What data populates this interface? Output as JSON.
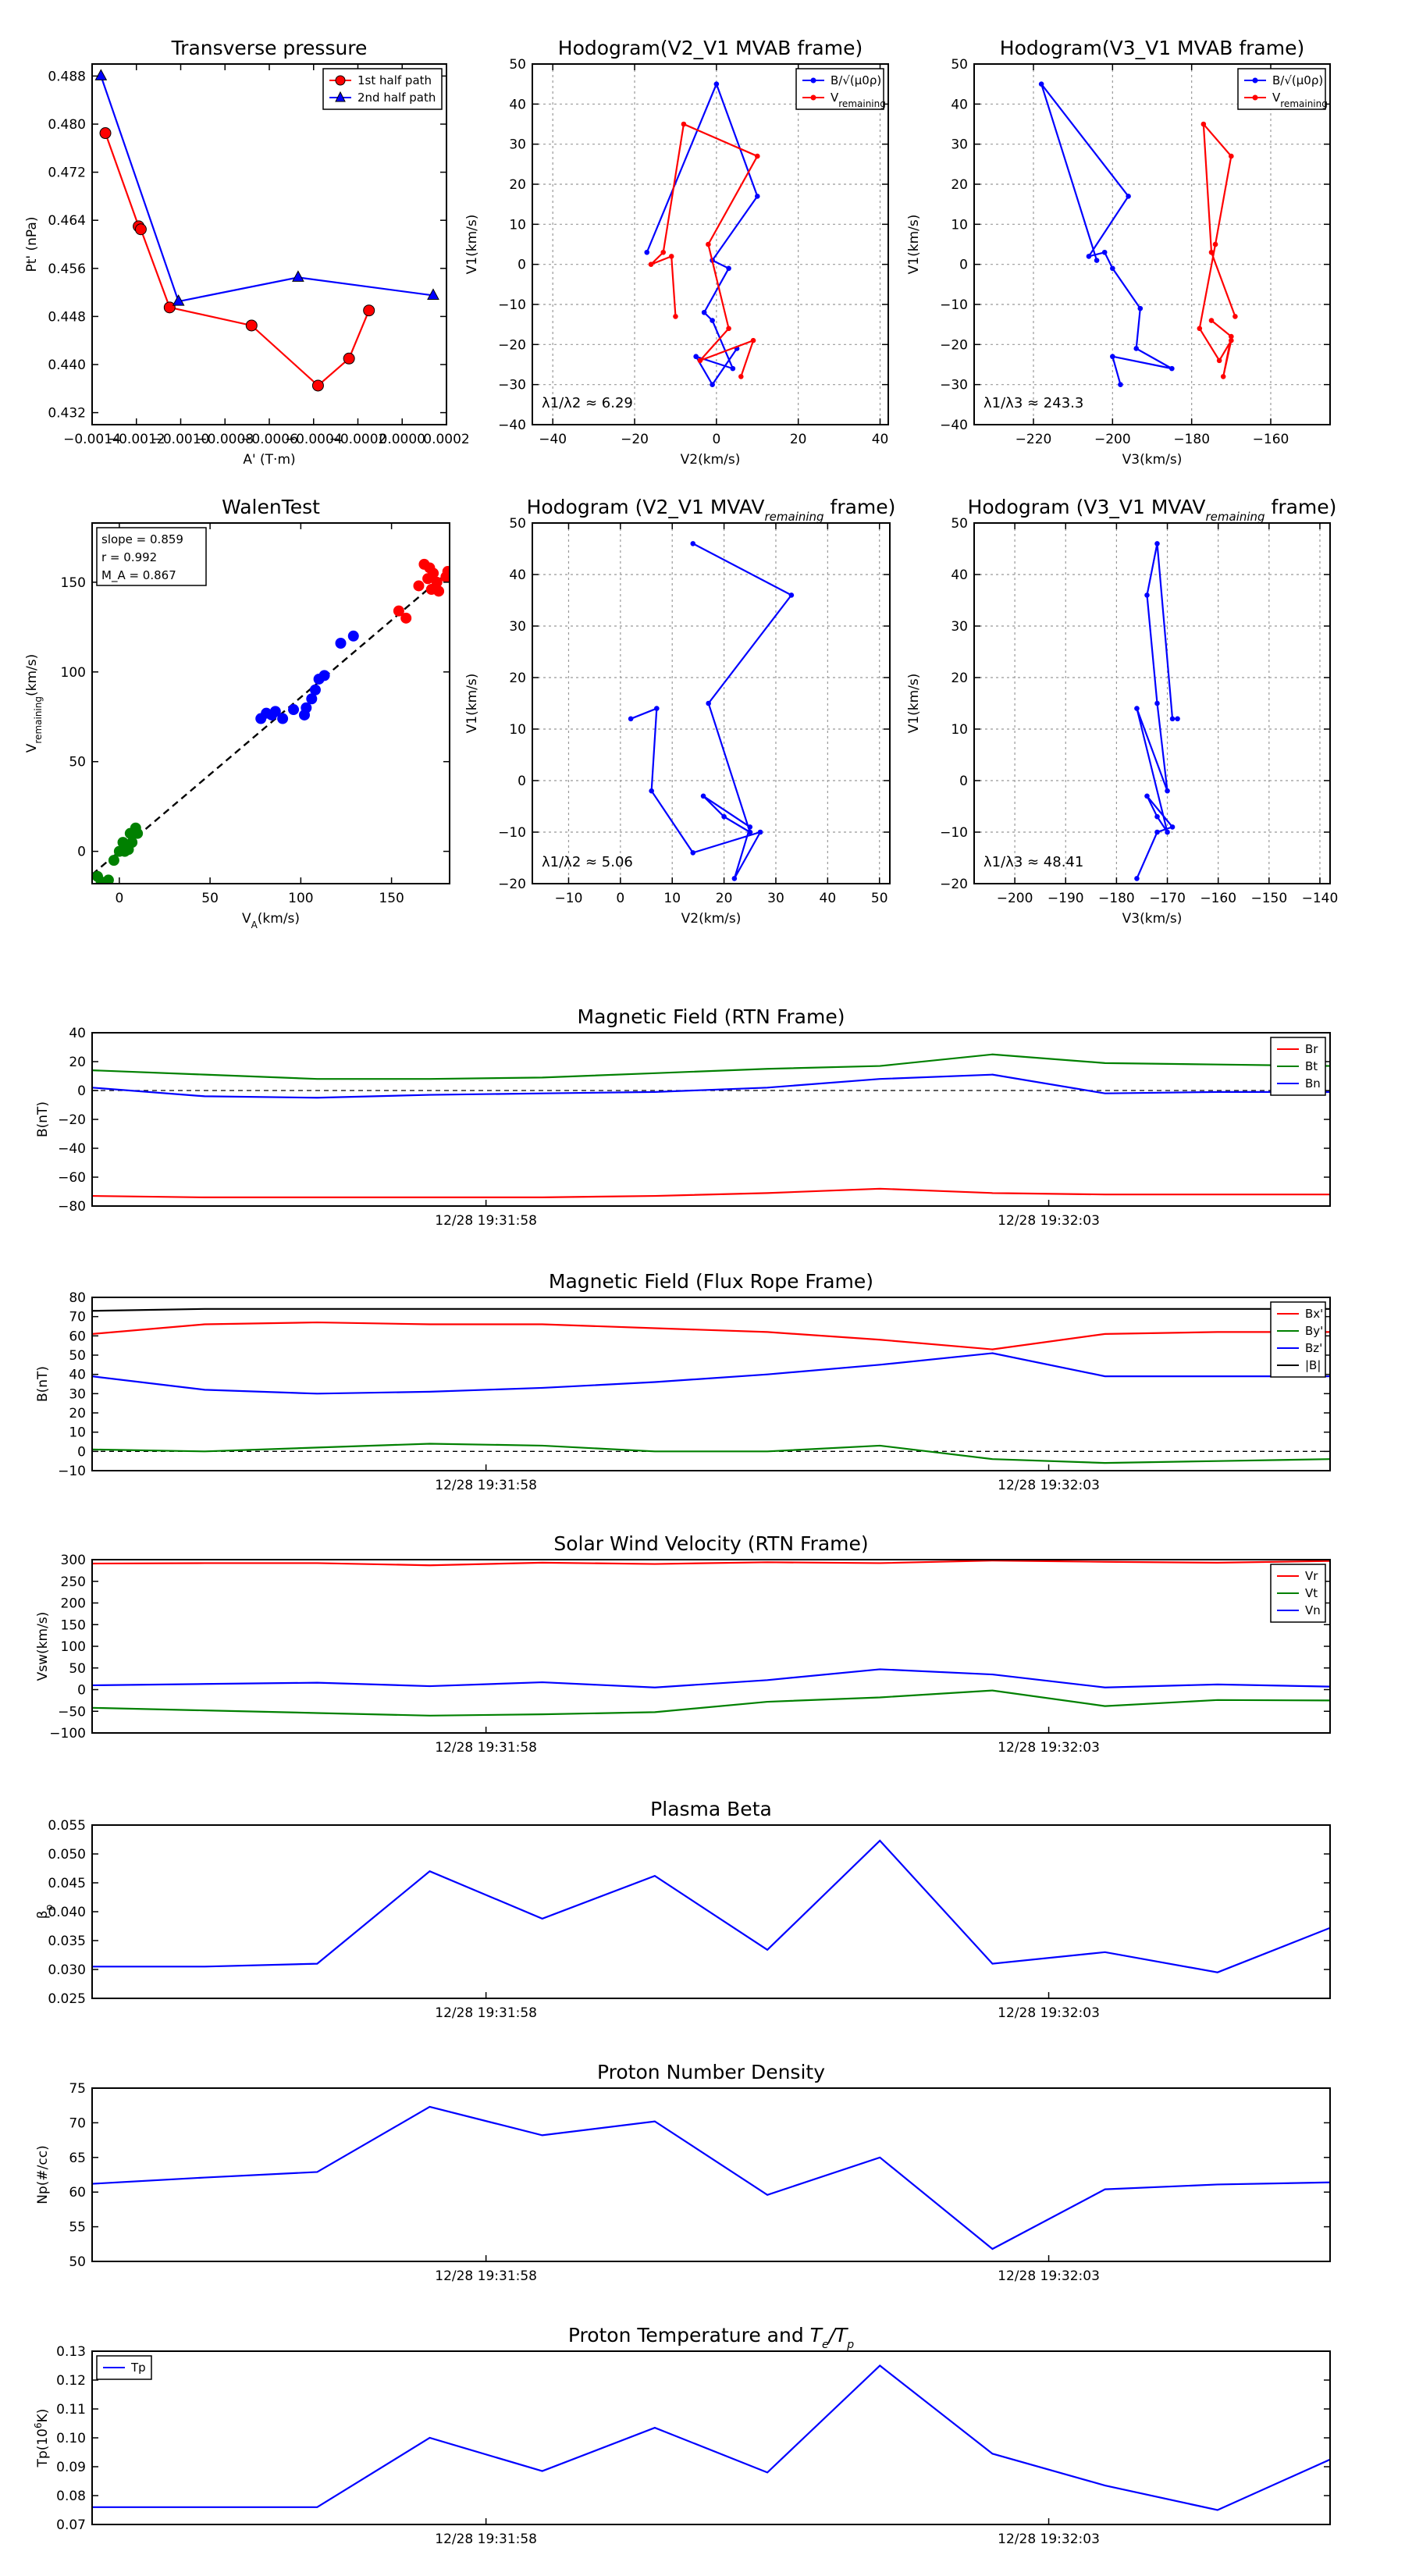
{
  "chart_data": [
    {
      "id": "pt",
      "type": "scatter",
      "title": "Transverse pressure",
      "xlabel": "A' (T·m)",
      "ylabel": "Pt' (nPa)",
      "xlim": [
        -0.0014,
        0.0002
      ],
      "ylim": [
        0.43,
        0.49
      ],
      "xticks": [
        -0.0014,
        -0.0012,
        -0.001,
        -0.0008,
        -0.0006,
        -0.0004,
        -0.0002,
        0.0,
        0.0002
      ],
      "xtick_labels": [
        "-0.0014",
        "-0.0012",
        "-0.0010",
        "-0.0008",
        "-0.0006",
        "-0.0004",
        "-0.0002",
        "0.0000",
        "0.0002"
      ],
      "yticks": [
        0.432,
        0.44,
        0.448,
        0.456,
        0.464,
        0.472,
        0.48,
        0.488
      ],
      "ytick_labels": [
        "0.432",
        "0.440",
        "0.448",
        "0.456",
        "0.464",
        "0.472",
        "0.480",
        "0.488"
      ],
      "grid": false,
      "legend": "top-right",
      "series": [
        {
          "name": "1st half path",
          "color": "#ff0000",
          "marker": "circle",
          "x": [
            -0.00134,
            -0.00119,
            -0.00118,
            -0.00105,
            -0.00068,
            -0.00038,
            -0.00024,
            -0.00015
          ],
          "y": [
            0.4785,
            0.463,
            0.4625,
            0.4495,
            0.4465,
            0.4365,
            0.441,
            0.449
          ]
        },
        {
          "name": "2nd half path",
          "color": "#0000ff",
          "marker": "triangle",
          "x": [
            -0.00136,
            -0.00101,
            -0.00047,
            0.00014
          ],
          "y": [
            0.488,
            0.4505,
            0.4545,
            0.4515
          ]
        }
      ]
    },
    {
      "id": "hodo1",
      "type": "line",
      "title": "Hodogram(V2_V1 MVAB frame)",
      "xlabel": "V2(km/s)",
      "ylabel": "V1(km/s)",
      "xlim": [
        -45,
        42
      ],
      "ylim": [
        -40,
        50
      ],
      "xticks": [
        -40,
        -20,
        0,
        20,
        40
      ],
      "yticks": [
        -40,
        -30,
        -20,
        -10,
        0,
        10,
        20,
        30,
        40,
        50
      ],
      "grid": true,
      "legend": "top-right",
      "annotation": "λ1/λ2 ≈ 6.29",
      "series": [
        {
          "name": "B/√(μ0ρ)",
          "color": "#0000ff",
          "x": [
            -17,
            0,
            10,
            -1,
            3,
            -3,
            -1,
            4,
            -5,
            -1,
            5
          ],
          "y": [
            3,
            45,
            17,
            1,
            -1,
            -12,
            -14,
            -26,
            -23,
            -30,
            -21
          ]
        },
        {
          "name": "V remaining",
          "color": "#ff0000",
          "x": [
            -10,
            -11,
            -16,
            -13,
            -8,
            10,
            -2,
            3,
            -4,
            9,
            6
          ],
          "y": [
            -13,
            2,
            0,
            3,
            35,
            27,
            5,
            -16,
            -24,
            -19,
            -28
          ]
        }
      ]
    },
    {
      "id": "hodo2",
      "type": "line",
      "title": "Hodogram(V3_V1 MVAB frame)",
      "xlabel": "V3(km/s)",
      "ylabel": "V1(km/s)",
      "xlim": [
        -235,
        -145
      ],
      "ylim": [
        -40,
        50
      ],
      "xticks": [
        -220,
        -200,
        -180,
        -160
      ],
      "yticks": [
        -40,
        -30,
        -20,
        -10,
        0,
        10,
        20,
        30,
        40,
        50
      ],
      "grid": true,
      "legend": "top-right",
      "annotation": "λ1/λ3 ≈ 243.3",
      "series": [
        {
          "name": "B/√(μ0ρ)",
          "color": "#0000ff",
          "x": [
            -204,
            -218,
            -196,
            -206,
            -202,
            -200,
            -193,
            -194,
            -185,
            -200,
            -198
          ],
          "y": [
            1,
            45,
            17,
            2,
            3,
            -1,
            -11,
            -21,
            -26,
            -23,
            -30
          ]
        },
        {
          "name": "V remaining",
          "color": "#ff0000",
          "x": [
            -169,
            -175,
            -177,
            -170,
            -174,
            -178,
            -173,
            -170,
            -172,
            -170,
            -175
          ],
          "y": [
            -13,
            3,
            35,
            27,
            5,
            -16,
            -24,
            -19,
            -28,
            -18,
            -14
          ]
        }
      ]
    },
    {
      "id": "walen",
      "type": "scatter",
      "title": "WalenTest",
      "xlabel": "V_A(km/s)",
      "ylabel": "V_remaining(km/s)",
      "xlim": [
        -15,
        182
      ],
      "ylim": [
        -18,
        183
      ],
      "xticks": [
        0,
        50,
        100,
        150
      ],
      "yticks": [
        0,
        50,
        100,
        150
      ],
      "grid": false,
      "legend": "",
      "stats": {
        "slope": "slope = 0.859",
        "r": "r = 0.992",
        "ma": "M_A = 0.867"
      },
      "fit_line": {
        "x": [
          -15,
          182
        ],
        "y": [
          -12.9,
          156.3
        ]
      },
      "series": [
        {
          "name": "green",
          "color": "#008000",
          "x": [
            -12,
            -10,
            -6,
            -3,
            0,
            2,
            3,
            5,
            6,
            7,
            9,
            10
          ],
          "y": [
            -14,
            -17,
            -16,
            -5,
            0,
            5,
            0,
            1,
            10,
            5,
            13,
            10
          ]
        },
        {
          "name": "blue",
          "color": "#0000ff",
          "x": [
            78,
            81,
            84,
            86,
            90,
            96,
            102,
            103,
            106,
            108,
            110,
            113,
            122,
            129
          ],
          "y": [
            74,
            77,
            76,
            78,
            74,
            79,
            76,
            80,
            85,
            90,
            96,
            98,
            116,
            120
          ]
        },
        {
          "name": "red",
          "color": "#ff0000",
          "x": [
            154,
            158,
            165,
            168,
            170,
            171,
            172,
            173,
            175,
            176,
            180,
            181
          ],
          "y": [
            134,
            130,
            148,
            160,
            152,
            158,
            146,
            155,
            150,
            145,
            153,
            156
          ]
        }
      ]
    },
    {
      "id": "hodo3",
      "type": "line",
      "title": "Hodogram (V2_V1 MVAV_remaining frame)",
      "xlabel": "V2(km/s)",
      "ylabel": "V1(km/s)",
      "xlim": [
        -17,
        52
      ],
      "ylim": [
        -20,
        50
      ],
      "xticks": [
        -10,
        0,
        10,
        20,
        30,
        40,
        50
      ],
      "yticks": [
        -20,
        -10,
        0,
        10,
        20,
        30,
        40,
        50
      ],
      "grid": true,
      "legend": "",
      "annotation": "λ1/λ2 ≈ 5.06",
      "series": [
        {
          "name": "V remaining",
          "color": "#0000ff",
          "x": [
            2,
            7,
            6,
            14,
            27,
            22,
            25,
            16,
            20,
            25,
            17,
            33,
            14
          ],
          "y": [
            12,
            14,
            -2,
            -14,
            -10,
            -19,
            -9,
            -3,
            -7,
            -10,
            15,
            36,
            46
          ]
        }
      ]
    },
    {
      "id": "hodo4",
      "type": "line",
      "title": "Hodogram (V3_V1 MVAV_remaining frame)",
      "xlabel": "V3(km/s)",
      "ylabel": "V1(km/s)",
      "xlim": [
        -208,
        -138
      ],
      "ylim": [
        -20,
        50
      ],
      "xticks": [
        -200,
        -190,
        -180,
        -170,
        -160,
        -150,
        -140
      ],
      "yticks": [
        -20,
        -10,
        0,
        10,
        20,
        30,
        40,
        50
      ],
      "grid": true,
      "legend": "",
      "annotation": "λ1/λ3 ≈ 48.41",
      "series": [
        {
          "name": "V remaining",
          "color": "#0000ff",
          "x": [
            -176,
            -172,
            -169,
            -174,
            -172,
            -170,
            -176,
            -170,
            -172,
            -174,
            -172,
            -169,
            -168
          ],
          "y": [
            -19,
            -10,
            -9,
            -3,
            -7,
            -10,
            14,
            -2,
            15,
            36,
            46,
            12,
            12
          ]
        }
      ]
    },
    {
      "id": "ts_b",
      "type": "line",
      "title": "Magnetic Field (RTN Frame)",
      "xlabel": "",
      "ylabel": "B(nT)",
      "xlim": [
        0,
        11
      ],
      "ylim": [
        -80,
        40
      ],
      "yticks": [
        -80,
        -60,
        -40,
        -20,
        0,
        20,
        40
      ],
      "xtick_labels": [
        {
          "t": 3.5,
          "label": "12/28 19:31:58"
        },
        {
          "t": 8.5,
          "label": "12/28 19:32:03"
        }
      ],
      "zero_line": true,
      "legend": "top-right",
      "series": [
        {
          "name": "Br",
          "color": "#ff0000",
          "values": [
            -73,
            -74,
            -74,
            -74,
            -74,
            -73,
            -71,
            -68,
            -71,
            -72,
            -72,
            -72
          ]
        },
        {
          "name": "Bt",
          "color": "#008000",
          "values": [
            14,
            11,
            8,
            8,
            9,
            12,
            15,
            17,
            25,
            19,
            18,
            17
          ]
        },
        {
          "name": "Bn",
          "color": "#0000ff",
          "values": [
            2,
            -4,
            -5,
            -3,
            -2,
            -1,
            2,
            8,
            11,
            -2,
            -1,
            -1
          ]
        }
      ]
    },
    {
      "id": "ts_bfr",
      "type": "line",
      "title": "Magnetic Field (Flux Rope Frame)",
      "xlabel": "",
      "ylabel": "B(nT)",
      "xlim": [
        0,
        11
      ],
      "ylim": [
        -10,
        80
      ],
      "yticks": [
        -10,
        0,
        10,
        20,
        30,
        40,
        50,
        60,
        70,
        80
      ],
      "xtick_labels": [
        {
          "t": 3.5,
          "label": "12/28 19:31:58"
        },
        {
          "t": 8.5,
          "label": "12/28 19:32:03"
        }
      ],
      "zero_line": true,
      "legend": "top-right",
      "series": [
        {
          "name": "Bx'",
          "color": "#ff0000",
          "values": [
            61,
            66,
            67,
            66,
            66,
            64,
            62,
            58,
            53,
            61,
            62,
            62
          ]
        },
        {
          "name": "By'",
          "color": "#008000",
          "values": [
            1,
            0,
            2,
            4,
            3,
            0,
            0,
            3,
            -4,
            -6,
            -5,
            -4
          ]
        },
        {
          "name": "Bz'",
          "color": "#0000ff",
          "values": [
            39,
            32,
            30,
            31,
            33,
            36,
            40,
            45,
            51,
            39,
            39,
            39
          ]
        },
        {
          "name": "|B|",
          "color": "#000000",
          "values": [
            73,
            74,
            74,
            74,
            74,
            74,
            74,
            74,
            74,
            74,
            74,
            74
          ]
        }
      ]
    },
    {
      "id": "ts_v",
      "type": "line",
      "title": "Solar Wind Velocity (RTN Frame)",
      "xlabel": "",
      "ylabel": "Vsw(km/s)",
      "xlim": [
        0,
        11
      ],
      "ylim": [
        -100,
        300
      ],
      "yticks": [
        -100,
        -50,
        0,
        50,
        100,
        150,
        200,
        250,
        300
      ],
      "xtick_labels": [
        {
          "t": 3.5,
          "label": "12/28 19:31:58"
        },
        {
          "t": 8.5,
          "label": "12/28 19:32:03"
        }
      ],
      "zero_line": false,
      "legend": "top-right",
      "series": [
        {
          "name": "Vr",
          "color": "#ff0000",
          "values": [
            291,
            292,
            292,
            287,
            293,
            290,
            294,
            292,
            298,
            295,
            293,
            297
          ]
        },
        {
          "name": "Vt",
          "color": "#008000",
          "values": [
            -42,
            -48,
            -54,
            -60,
            -57,
            -52,
            -28,
            -18,
            -2,
            -38,
            -24,
            -25
          ]
        },
        {
          "name": "Vn",
          "color": "#0000ff",
          "values": [
            10,
            13,
            16,
            8,
            17,
            5,
            22,
            47,
            35,
            5,
            12,
            7
          ]
        }
      ]
    },
    {
      "id": "ts_beta",
      "type": "line",
      "title": "Plasma Beta",
      "xlabel": "",
      "ylabel": "βp",
      "xlim": [
        0,
        11
      ],
      "ylim": [
        0.025,
        0.055
      ],
      "yticks": [
        0.025,
        0.03,
        0.035,
        0.04,
        0.045,
        0.05,
        0.055
      ],
      "ytick_labels": [
        "0.025",
        "0.030",
        "0.035",
        "0.040",
        "0.045",
        "0.050",
        "0.055"
      ],
      "xtick_labels": [
        {
          "t": 3.5,
          "label": "12/28 19:31:58"
        },
        {
          "t": 8.5,
          "label": "12/28 19:32:03"
        }
      ],
      "zero_line": false,
      "legend": "",
      "series": [
        {
          "name": "beta",
          "color": "#0000ff",
          "values": [
            0.0305,
            0.0305,
            0.031,
            0.047,
            0.0388,
            0.0462,
            0.0334,
            0.0523,
            0.031,
            0.033,
            0.0295,
            0.0372
          ]
        }
      ]
    },
    {
      "id": "ts_np",
      "type": "line",
      "title": "Proton Number Density",
      "xlabel": "",
      "ylabel": "Np(#/cc)",
      "xlim": [
        0,
        11
      ],
      "ylim": [
        50,
        75
      ],
      "yticks": [
        50,
        55,
        60,
        65,
        70,
        75
      ],
      "xtick_labels": [
        {
          "t": 3.5,
          "label": "12/28 19:31:58"
        },
        {
          "t": 8.5,
          "label": "12/28 19:32:03"
        }
      ],
      "zero_line": false,
      "legend": "",
      "series": [
        {
          "name": "Np",
          "color": "#0000ff",
          "values": [
            61.2,
            62.1,
            62.9,
            72.3,
            68.2,
            70.2,
            59.6,
            65.0,
            51.8,
            60.4,
            61.1,
            61.4
          ]
        }
      ]
    },
    {
      "id": "ts_tp",
      "type": "line",
      "title": "Proton Temperature and T_e/T_p",
      "xlabel": "",
      "ylabel": "Tp(10^6K)",
      "xlim": [
        0,
        11
      ],
      "ylim": [
        0.07,
        0.13
      ],
      "yticks": [
        0.07,
        0.08,
        0.09,
        0.1,
        0.11,
        0.12,
        0.13
      ],
      "ytick_labels": [
        "0.07",
        "0.08",
        "0.09",
        "0.10",
        "0.11",
        "0.12",
        "0.13"
      ],
      "xtick_labels": [
        {
          "t": 3.5,
          "label": "12/28 19:31:58"
        },
        {
          "t": 8.5,
          "label": "12/28 19:32:03"
        }
      ],
      "zero_line": false,
      "legend": "top-left",
      "series": [
        {
          "name": "Tp",
          "color": "#0000ff",
          "values": [
            0.076,
            0.076,
            0.076,
            0.1,
            0.0885,
            0.1035,
            0.088,
            0.125,
            0.0945,
            0.0835,
            0.075,
            0.0925
          ]
        }
      ]
    }
  ]
}
